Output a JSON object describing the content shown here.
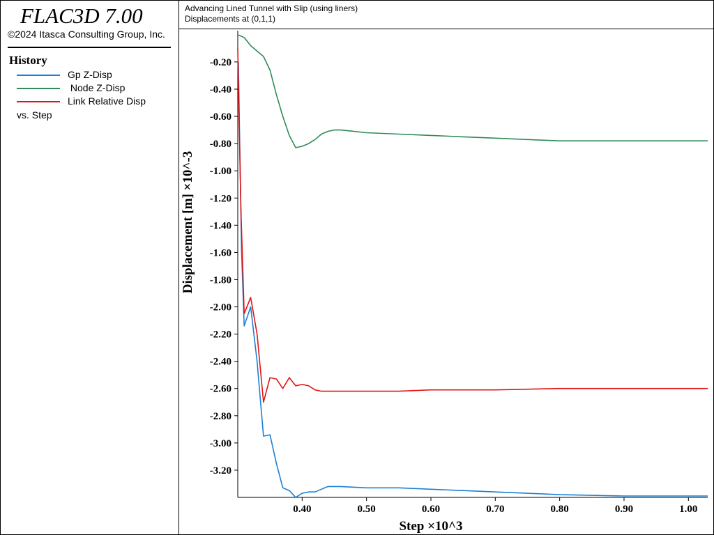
{
  "app": {
    "title": "FLAC3D 7.00",
    "copyright": "©2024 Itasca Consulting Group, Inc."
  },
  "history": {
    "heading": "History",
    "legend": [
      {
        "label": "Gp Z-Disp",
        "color": "#1b7fd4"
      },
      {
        "label": " Node Z-Disp",
        "color": "#2e8b57"
      },
      {
        "label": "Link Relative Disp",
        "color": "#e31414"
      }
    ],
    "vs_label": "vs. Step"
  },
  "plot": {
    "title": "Advancing Lined Tunnel with Slip (using liners)",
    "subtitle": "Displacements at (0,1,1)"
  },
  "chart_data": {
    "type": "line",
    "xlabel": "Step ×10^3",
    "ylabel": "Displacement [m] ×10^-3",
    "xlim": [
      0.3,
      1.03
    ],
    "ylim": [
      -3.4,
      0.03
    ],
    "xticks": [
      0.4,
      0.5,
      0.6,
      0.7,
      0.8,
      0.9,
      1.0
    ],
    "xtick_labels": [
      "0.40",
      "0.50",
      "0.60",
      "0.70",
      "0.80",
      "0.90",
      "1.00"
    ],
    "yticks": [
      -0.2,
      -0.4,
      -0.6,
      -0.8,
      -1.0,
      -1.2,
      -1.4,
      -1.6,
      -1.8,
      -2.0,
      -2.2,
      -2.4,
      -2.6,
      -2.8,
      -3.0,
      -3.2
    ],
    "ytick_labels": [
      "-0.20",
      "-0.40",
      "-0.60",
      "-0.80",
      "-1.00",
      "-1.20",
      "-1.40",
      "-1.60",
      "-1.80",
      "-2.00",
      "-2.20",
      "-2.40",
      "-2.60",
      "-2.80",
      "-3.00",
      "-3.20"
    ],
    "grid": false,
    "series": [
      {
        "name": "Gp Z-Disp",
        "color": "#1b7fd4",
        "x": [
          0.301,
          0.303,
          0.306,
          0.31,
          0.32,
          0.33,
          0.34,
          0.35,
          0.36,
          0.37,
          0.38,
          0.39,
          0.4,
          0.41,
          0.42,
          0.43,
          0.44,
          0.45,
          0.46,
          0.5,
          0.55,
          0.6,
          0.65,
          0.7,
          0.75,
          0.8,
          0.9,
          1.0,
          1.03
        ],
        "y": [
          -0.2,
          -0.8,
          -1.6,
          -2.14,
          -2.0,
          -2.4,
          -2.95,
          -2.94,
          -3.15,
          -3.33,
          -3.35,
          -3.4,
          -3.37,
          -3.36,
          -3.36,
          -3.34,
          -3.32,
          -3.32,
          -3.32,
          -3.33,
          -3.33,
          -3.34,
          -3.35,
          -3.36,
          -3.37,
          -3.38,
          -3.39,
          -3.39,
          -3.39
        ]
      },
      {
        "name": " Node Z-Disp",
        "color": "#2e8b57",
        "x": [
          0.3,
          0.31,
          0.32,
          0.34,
          0.35,
          0.36,
          0.37,
          0.38,
          0.39,
          0.4,
          0.41,
          0.42,
          0.43,
          0.44,
          0.45,
          0.46,
          0.5,
          0.55,
          0.6,
          0.65,
          0.7,
          0.75,
          0.8,
          0.9,
          1.0,
          1.03
        ],
        "y": [
          0.0,
          -0.02,
          -0.08,
          -0.16,
          -0.26,
          -0.44,
          -0.6,
          -0.74,
          -0.83,
          -0.82,
          -0.8,
          -0.77,
          -0.73,
          -0.71,
          -0.7,
          -0.7,
          -0.72,
          -0.73,
          -0.74,
          -0.75,
          -0.76,
          -0.77,
          -0.78,
          -0.78,
          -0.78,
          -0.78
        ]
      },
      {
        "name": "Link Relative Disp",
        "color": "#e31414",
        "x": [
          0.3,
          0.302,
          0.305,
          0.31,
          0.32,
          0.33,
          0.34,
          0.35,
          0.36,
          0.37,
          0.38,
          0.39,
          0.4,
          0.41,
          0.42,
          0.43,
          0.44,
          0.45,
          0.46,
          0.5,
          0.55,
          0.6,
          0.7,
          0.8,
          0.9,
          1.0,
          1.03
        ],
        "y": [
          -0.1,
          -0.6,
          -1.3,
          -2.05,
          -1.93,
          -2.2,
          -2.7,
          -2.52,
          -2.53,
          -2.6,
          -2.52,
          -2.58,
          -2.57,
          -2.58,
          -2.61,
          -2.62,
          -2.62,
          -2.62,
          -2.62,
          -2.62,
          -2.62,
          -2.61,
          -2.61,
          -2.6,
          -2.6,
          -2.6,
          -2.6
        ]
      }
    ]
  }
}
